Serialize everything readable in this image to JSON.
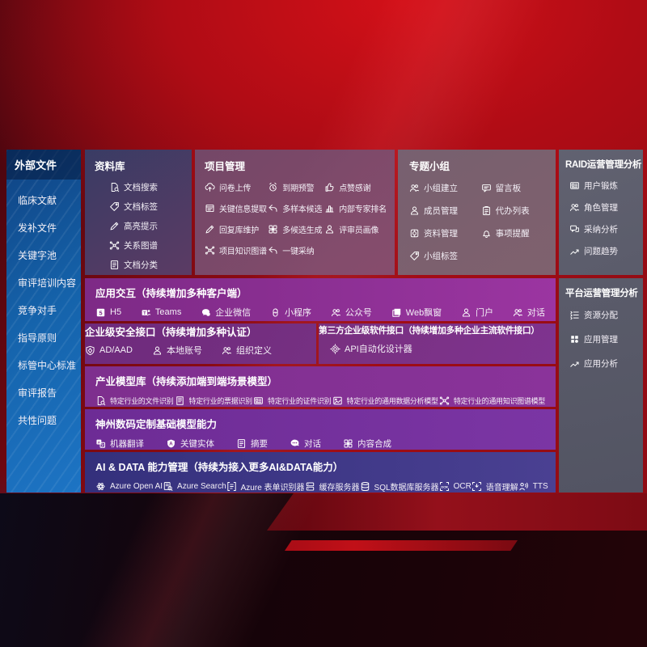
{
  "palette": {
    "background_red": "#b00c15",
    "sidebar_blue": "#1563ab",
    "purple_row": "#7d2a86",
    "violet_row": "#6d2c95",
    "indigo_row": "#34307c",
    "slate_panel": "#5c6372"
  },
  "sidebar": {
    "title": "外部文件",
    "items": [
      {
        "label": "临床文献"
      },
      {
        "label": "发补文件"
      },
      {
        "label": "关键字池"
      },
      {
        "label": "审评培训内容"
      },
      {
        "label": "竞争对手"
      },
      {
        "label": "指导原则"
      },
      {
        "label": "标管中心标准"
      },
      {
        "label": "审评报告"
      },
      {
        "label": "共性问题"
      }
    ]
  },
  "library": {
    "title": "资料库",
    "items": [
      {
        "icon": "doc-search-icon",
        "label": "文档搜索"
      },
      {
        "icon": "tag-icon",
        "label": "文档标签"
      },
      {
        "icon": "highlight-pen-icon",
        "label": "高亮提示"
      },
      {
        "icon": "graph-icon",
        "label": "关系图谱"
      },
      {
        "icon": "doc-category-icon",
        "label": "文档分类"
      }
    ]
  },
  "project": {
    "title": "项目管理",
    "items": [
      {
        "icon": "cloud-upload-icon",
        "label": "问卷上传"
      },
      {
        "icon": "alarm-icon",
        "label": "到期预警"
      },
      {
        "icon": "thumb-up-icon",
        "label": "点赞感谢"
      },
      {
        "icon": "info-extract-icon",
        "label": "关键信息提取"
      },
      {
        "icon": "reply-icon",
        "label": "多样本候选"
      },
      {
        "icon": "ranking-icon",
        "label": "内部专家排名"
      },
      {
        "icon": "pen-icon",
        "label": "回复库维护"
      },
      {
        "icon": "multi-gen-icon",
        "label": "多候选生成"
      },
      {
        "icon": "reviewer-icon",
        "label": "评审员画像"
      },
      {
        "icon": "knowledge-graph-icon",
        "label": "项目知识图谱"
      },
      {
        "icon": "adopt-icon",
        "label": "一键采纳"
      }
    ]
  },
  "group": {
    "title": "专题小组",
    "items": [
      {
        "icon": "group-icon",
        "label": "小组建立"
      },
      {
        "icon": "bbs-icon",
        "label": "留言板"
      },
      {
        "icon": "member-icon",
        "label": "成员管理"
      },
      {
        "icon": "todo-icon",
        "label": "代办列表"
      },
      {
        "icon": "data-manage-icon",
        "label": "资料管理"
      },
      {
        "icon": "bell-icon",
        "label": "事项提醒"
      },
      {
        "icon": "group-tag-icon",
        "label": "小组标签"
      }
    ]
  },
  "raid": {
    "title": "RAID运营管理分析",
    "items": [
      {
        "icon": "user-card-icon",
        "label": "用户锻炼"
      },
      {
        "icon": "roles-icon",
        "label": "角色管理"
      },
      {
        "icon": "qa-icon",
        "label": "采纳分析"
      },
      {
        "icon": "trend-icon",
        "label": "问题趋势"
      }
    ]
  },
  "platform": {
    "title": "平台运营管理分析",
    "items": [
      {
        "icon": "allocation-list-icon",
        "label": "资源分配"
      },
      {
        "icon": "app-grid-icon",
        "label": "应用管理"
      },
      {
        "icon": "app-analysis-icon",
        "label": "应用分析"
      }
    ]
  },
  "interaction": {
    "title": "应用交互（持续增加多种客户端）",
    "items": [
      {
        "icon": "h5-icon",
        "label": "H5"
      },
      {
        "icon": "teams-icon",
        "label": "Teams"
      },
      {
        "icon": "wechat-icon",
        "label": "企业微信"
      },
      {
        "icon": "miniprogram-icon",
        "label": "小程序"
      },
      {
        "icon": "official-account-icon",
        "label": "公众号"
      },
      {
        "icon": "web-window-icon",
        "label": "Web飘窗"
      },
      {
        "icon": "portal-icon",
        "label": "门户"
      },
      {
        "icon": "chat-pair-icon",
        "label": "对话"
      }
    ]
  },
  "security": {
    "title": "企业级安全接口（持续增加多种认证）",
    "items": [
      {
        "icon": "ad-shield-icon",
        "label": "AD/AAD"
      },
      {
        "icon": "local-account-icon",
        "label": "本地账号"
      },
      {
        "icon": "org-icon",
        "label": "组织定义"
      }
    ]
  },
  "third_party": {
    "title": "第三方企业级软件接口（持续增加多种企业主流软件接口）",
    "items": [
      {
        "icon": "api-gear-icon",
        "label": "API自动化设计器"
      }
    ]
  },
  "industry_models": {
    "title": "产业模型库（持续添加端到端场景模型）",
    "items": [
      {
        "icon": "file-recog-icon",
        "label": "特定行业的文件识别"
      },
      {
        "icon": "invoice-icon",
        "label": "特定行业的票据识别"
      },
      {
        "icon": "certificate-icon",
        "label": "特定行业的证件识别"
      },
      {
        "icon": "data-model-icon",
        "label": "特定行业的通用数据分析模型"
      },
      {
        "icon": "knowledge-model-icon",
        "label": "特定行业的通用知识图谱模型"
      }
    ]
  },
  "base_models": {
    "title": "神州数码定制基础模型能力",
    "items": [
      {
        "icon": "translate-icon",
        "label": "机器翻译"
      },
      {
        "icon": "entity-icon",
        "label": "关键实体"
      },
      {
        "icon": "summary-icon",
        "label": "摘要"
      },
      {
        "icon": "dialog-icon",
        "label": "对话"
      },
      {
        "icon": "compose-icon",
        "label": "内容合成"
      }
    ]
  },
  "ai_data": {
    "title": "AI & DATA 能力管理（持续为接入更多AI&DATA能力）",
    "items": [
      {
        "icon": "openai-icon",
        "label": "Azure Open AI"
      },
      {
        "icon": "azure-search-icon",
        "label": "Azure Search"
      },
      {
        "icon": "form-recognizer-icon",
        "label": "Azure 表单识别器"
      },
      {
        "icon": "cache-server-icon",
        "label": "缓存服务器"
      },
      {
        "icon": "sql-db-icon",
        "label": "SQL数据库服务器"
      },
      {
        "icon": "ocr-icon",
        "label": "OCR"
      },
      {
        "icon": "speech-icon",
        "label": "语音理解"
      },
      {
        "icon": "tts-icon",
        "label": "TTS"
      }
    ]
  }
}
